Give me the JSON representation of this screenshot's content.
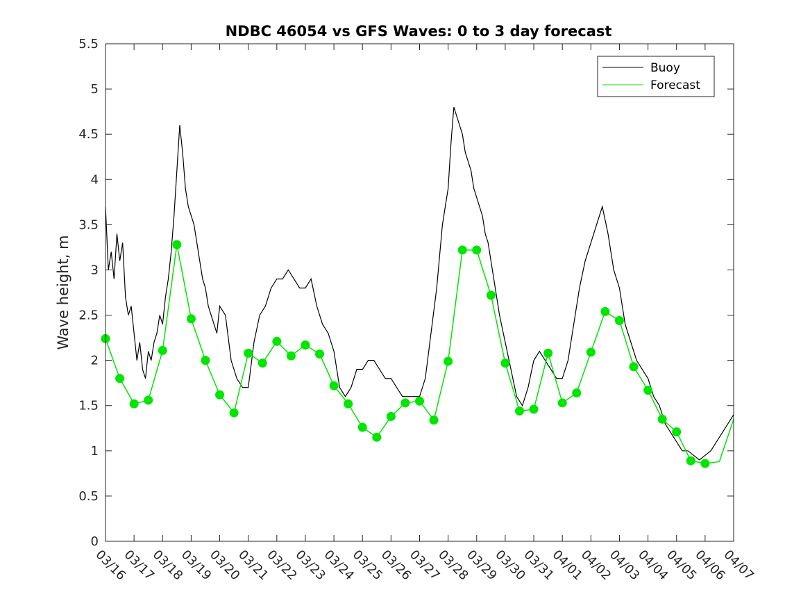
{
  "chart_data": {
    "type": "line",
    "title": "NDBC 46054 vs GFS Waves: 0 to 3 day forecast",
    "xlabel": "",
    "ylabel": "Wave height, m",
    "xlim": [
      0,
      22
    ],
    "ylim": [
      0,
      5.5
    ],
    "yticks": [
      0,
      0.5,
      1,
      1.5,
      2,
      2.5,
      3,
      3.5,
      4,
      4.5,
      5,
      5.5
    ],
    "ytick_labels": [
      "0",
      "0.5",
      "1",
      "1.5",
      "2",
      "2.5",
      "3",
      "3.5",
      "4",
      "4.5",
      "5",
      "5.5"
    ],
    "xtick_labels": [
      "03/16",
      "03/17",
      "03/18",
      "03/19",
      "03/20",
      "03/21",
      "03/22",
      "03/23",
      "03/24",
      "03/25",
      "03/26",
      "03/27",
      "03/28",
      "03/29",
      "03/30",
      "03/31",
      "04/01",
      "04/02",
      "04/03",
      "04/04",
      "04/05",
      "04/06",
      "04/07"
    ],
    "legend": {
      "location": "top-right",
      "entries": [
        "Buoy",
        "Forecast"
      ]
    },
    "colors": {
      "buoy": "#000000",
      "forecast": "#00e600",
      "axes": "#262626"
    },
    "series": [
      {
        "name": "Buoy",
        "x": [
          0,
          0.1,
          0.2,
          0.3,
          0.4,
          0.5,
          0.6,
          0.7,
          0.8,
          0.9,
          1.0,
          1.1,
          1.2,
          1.3,
          1.4,
          1.5,
          1.6,
          1.7,
          1.8,
          1.9,
          2.0,
          2.1,
          2.2,
          2.3,
          2.4,
          2.5,
          2.6,
          2.7,
          2.8,
          2.9,
          3.0,
          3.1,
          3.2,
          3.3,
          3.4,
          3.5,
          3.6,
          3.7,
          3.8,
          3.9,
          4.0,
          4.2,
          4.4,
          4.6,
          4.8,
          5.0,
          5.2,
          5.4,
          5.6,
          5.8,
          6.0,
          6.2,
          6.4,
          6.6,
          6.8,
          7.0,
          7.2,
          7.4,
          7.6,
          7.8,
          8.0,
          8.2,
          8.4,
          8.6,
          8.8,
          9.0,
          9.2,
          9.4,
          9.6,
          9.8,
          10.0,
          10.2,
          10.4,
          10.6,
          10.8,
          11.0,
          11.2,
          11.4,
          11.6,
          11.8,
          12.0,
          12.1,
          12.2,
          12.3,
          12.4,
          12.5,
          12.6,
          12.7,
          12.8,
          12.9,
          13.0,
          13.1,
          13.2,
          13.3,
          13.4,
          13.5,
          13.6,
          13.7,
          13.8,
          14.0,
          14.2,
          14.4,
          14.6,
          14.8,
          15.0,
          15.2,
          15.4,
          15.6,
          15.8,
          16.0,
          16.2,
          16.4,
          16.6,
          16.8,
          17.0,
          17.2,
          17.4,
          17.6,
          17.8,
          18.0,
          18.2,
          18.4,
          18.6,
          18.8,
          19.0,
          19.2,
          19.4,
          19.6,
          19.8,
          20.0,
          20.2,
          20.4,
          20.6,
          20.8,
          21.0,
          21.2,
          21.4,
          21.6,
          21.8,
          22.0
        ],
        "values": [
          3.7,
          3.0,
          3.2,
          2.9,
          3.4,
          3.1,
          3.3,
          2.7,
          2.5,
          2.6,
          2.3,
          2.0,
          2.2,
          1.9,
          1.8,
          2.1,
          2.0,
          2.2,
          2.3,
          2.5,
          2.4,
          2.7,
          2.9,
          3.2,
          3.6,
          4.1,
          4.6,
          4.3,
          3.9,
          3.7,
          3.6,
          3.5,
          3.3,
          3.1,
          2.9,
          2.8,
          2.6,
          2.5,
          2.4,
          2.3,
          2.6,
          2.5,
          2.0,
          1.8,
          1.7,
          1.7,
          2.2,
          2.5,
          2.6,
          2.8,
          2.9,
          2.9,
          3.0,
          2.9,
          2.8,
          2.8,
          2.9,
          2.6,
          2.4,
          2.3,
          2.1,
          1.7,
          1.6,
          1.7,
          1.9,
          1.9,
          2.0,
          2.0,
          1.9,
          1.8,
          1.8,
          1.7,
          1.6,
          1.6,
          1.6,
          1.6,
          1.8,
          2.3,
          2.8,
          3.5,
          3.9,
          4.4,
          4.8,
          4.7,
          4.6,
          4.5,
          4.3,
          4.2,
          4.1,
          3.9,
          3.8,
          3.7,
          3.6,
          3.4,
          3.3,
          3.1,
          2.9,
          2.7,
          2.5,
          2.2,
          1.9,
          1.6,
          1.5,
          1.7,
          2.0,
          2.1,
          2.0,
          1.9,
          1.8,
          1.8,
          2.0,
          2.4,
          2.8,
          3.1,
          3.3,
          3.5,
          3.7,
          3.4,
          3.0,
          2.8,
          2.4,
          2.2,
          2.0,
          1.9,
          1.8,
          1.6,
          1.5,
          1.3,
          1.2,
          1.1,
          1.0,
          1.0,
          0.95,
          0.9,
          0.95,
          1.0,
          1.1,
          1.2,
          1.3,
          1.4
        ]
      },
      {
        "name": "Forecast",
        "x": [
          0,
          0.5,
          1.0,
          1.5,
          2.0,
          2.5,
          3.0,
          3.5,
          4.0,
          4.5,
          5.0,
          5.5,
          6.0,
          6.5,
          7.0,
          7.5,
          8.0,
          8.5,
          9.0,
          9.5,
          10.0,
          10.5,
          11.0,
          11.5,
          12.0,
          12.5,
          13.0,
          13.5,
          14.0,
          14.5,
          15.0,
          15.5,
          16.0,
          16.5,
          17.0,
          17.5,
          18.0,
          18.5,
          19.0,
          19.5,
          20.0,
          20.5,
          21.0,
          21.5,
          22.0
        ],
        "values": [
          2.24,
          1.8,
          1.52,
          1.56,
          2.11,
          3.28,
          2.46,
          2.0,
          1.62,
          1.42,
          2.08,
          1.97,
          2.21,
          2.05,
          2.17,
          2.07,
          1.72,
          1.52,
          1.26,
          1.15,
          1.38,
          1.53,
          1.55,
          1.34,
          1.99,
          3.22,
          3.22,
          2.72,
          1.97,
          1.44,
          1.46,
          2.08,
          1.53,
          1.64,
          2.09,
          2.54,
          2.44,
          1.93,
          1.67,
          1.35,
          1.21,
          0.89,
          0.86,
          0.88,
          1.35
        ]
      }
    ],
    "markers": {
      "series": "Forecast",
      "x": [
        0,
        0.5,
        1.0,
        1.5,
        2.0,
        2.5,
        3.0,
        3.5,
        4.0,
        4.5,
        5.0,
        5.5,
        6.0,
        6.5,
        7.0,
        7.5,
        8.0,
        8.5,
        9.0,
        9.5,
        10.0,
        10.5,
        11.0,
        11.5,
        12.0,
        12.5,
        13.0,
        13.5,
        14.0,
        14.5,
        15.0,
        15.5,
        16.0,
        16.5,
        17.0,
        17.5,
        18.0,
        18.5,
        19.0,
        19.5,
        20.0,
        20.5,
        21.0
      ],
      "values": [
        2.24,
        1.8,
        1.52,
        1.56,
        2.11,
        3.28,
        2.46,
        2.0,
        1.62,
        1.42,
        2.08,
        1.97,
        2.21,
        2.05,
        2.17,
        2.07,
        1.72,
        1.52,
        1.26,
        1.15,
        1.38,
        1.53,
        1.55,
        1.34,
        1.99,
        3.22,
        3.22,
        2.72,
        1.97,
        1.44,
        1.46,
        2.08,
        1.53,
        1.64,
        2.09,
        2.54,
        2.44,
        1.93,
        1.67,
        1.35,
        1.21,
        0.89,
        0.86
      ]
    }
  }
}
